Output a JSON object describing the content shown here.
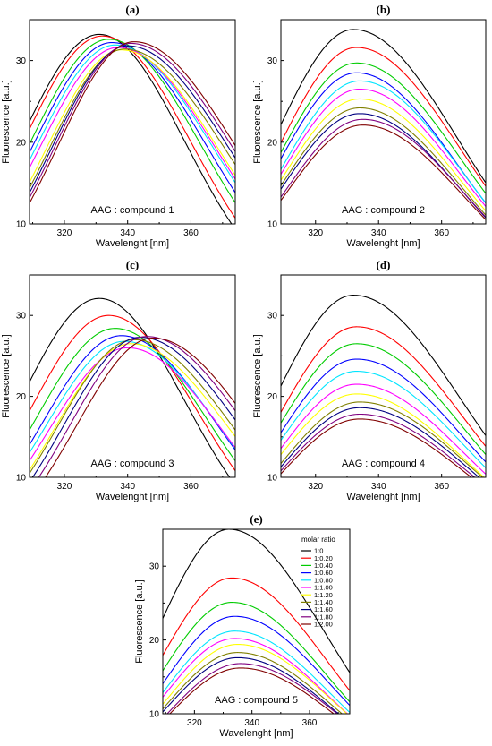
{
  "colors": [
    "#000000",
    "#ff0000",
    "#00cc00",
    "#0000ff",
    "#00e5ff",
    "#ff00ff",
    "#ffff00",
    "#808000",
    "#000080",
    "#800080",
    "#800000"
  ],
  "legend": {
    "title": "molar ratio",
    "entries": [
      "1:0",
      "1:0.20",
      "1:0.40",
      "1:0.60",
      "1:0.80",
      "1:1.00",
      "1:1.20",
      "1:1.40",
      "1:1.60",
      "1:1.80",
      "1:2.00"
    ]
  },
  "chart_data": [
    {
      "type": "line",
      "panel": "(a)",
      "annotation": "AAG : compound 1",
      "xlabel": "Wavelenght [nm]",
      "ylabel": "Fluorescence [a.u.]",
      "xlim": [
        309,
        374
      ],
      "ylim": [
        10,
        35
      ],
      "xticks": [
        320,
        340,
        360
      ],
      "yticks": [
        10,
        20,
        30
      ],
      "series_params": [
        {
          "amp": 33.2,
          "center": 331,
          "sigL": 25,
          "sigR": 27
        },
        {
          "amp": 33.0,
          "center": 332,
          "sigL": 25,
          "sigR": 28
        },
        {
          "amp": 32.6,
          "center": 334,
          "sigL": 25,
          "sigR": 29
        },
        {
          "amp": 32.2,
          "center": 335,
          "sigL": 25,
          "sigR": 30
        },
        {
          "amp": 31.9,
          "center": 336,
          "sigL": 25,
          "sigR": 31
        },
        {
          "amp": 31.6,
          "center": 337,
          "sigL": 25,
          "sigR": 31
        },
        {
          "amp": 31.3,
          "center": 338,
          "sigL": 24,
          "sigR": 31
        },
        {
          "amp": 31.4,
          "center": 339,
          "sigL": 24,
          "sigR": 32
        },
        {
          "amp": 31.8,
          "center": 340,
          "sigL": 24,
          "sigR": 32
        },
        {
          "amp": 32.1,
          "center": 341,
          "sigL": 24,
          "sigR": 32
        },
        {
          "amp": 32.3,
          "center": 342,
          "sigL": 24,
          "sigR": 32
        }
      ]
    },
    {
      "type": "line",
      "panel": "(b)",
      "annotation": "AAG : compound 2",
      "xlabel": "Wavelenght [nm]",
      "ylabel": "Fluorescence [a.u.]",
      "xlim": [
        309,
        374
      ],
      "ylim": [
        10,
        35
      ],
      "xticks": [
        320,
        340,
        360
      ],
      "yticks": [
        10,
        20,
        30
      ],
      "series_params": [
        {
          "amp": 33.8,
          "center": 332,
          "sigL": 25,
          "sigR": 33
        },
        {
          "amp": 31.6,
          "center": 333,
          "sigL": 25,
          "sigR": 33
        },
        {
          "amp": 29.7,
          "center": 333,
          "sigL": 25,
          "sigR": 33
        },
        {
          "amp": 28.5,
          "center": 333,
          "sigL": 25,
          "sigR": 32
        },
        {
          "amp": 27.5,
          "center": 334,
          "sigL": 25,
          "sigR": 32
        },
        {
          "amp": 26.5,
          "center": 334,
          "sigL": 25,
          "sigR": 32
        },
        {
          "amp": 25.3,
          "center": 334,
          "sigL": 25,
          "sigR": 32
        },
        {
          "amp": 24.2,
          "center": 334,
          "sigL": 25,
          "sigR": 32
        },
        {
          "amp": 23.5,
          "center": 334,
          "sigL": 25,
          "sigR": 32
        },
        {
          "amp": 22.8,
          "center": 335,
          "sigL": 25,
          "sigR": 32
        },
        {
          "amp": 22.1,
          "center": 335,
          "sigL": 25,
          "sigR": 32
        }
      ]
    },
    {
      "type": "line",
      "panel": "(c)",
      "annotation": "AAG  : compound 3",
      "xlabel": "Wavelenght [nm]",
      "ylabel": "Fluorescence [a.u.]",
      "xlim": [
        309,
        374
      ],
      "ylim": [
        10,
        35
      ],
      "xticks": [
        320,
        340,
        360
      ],
      "yticks": [
        10,
        20,
        30
      ],
      "series_params": [
        {
          "amp": 32.1,
          "center": 331,
          "sigL": 25,
          "sigR": 27
        },
        {
          "amp": 30.0,
          "center": 334,
          "sigL": 25,
          "sigR": 28
        },
        {
          "amp": 28.4,
          "center": 336,
          "sigL": 25,
          "sigR": 29
        },
        {
          "amp": 27.5,
          "center": 338,
          "sigL": 25,
          "sigR": 30
        },
        {
          "amp": 26.8,
          "center": 339,
          "sigL": 25,
          "sigR": 30
        },
        {
          "amp": 26.0,
          "center": 340,
          "sigL": 25,
          "sigR": 30
        },
        {
          "amp": 26.5,
          "center": 341,
          "sigL": 24,
          "sigR": 31
        },
        {
          "amp": 27.0,
          "center": 342,
          "sigL": 24,
          "sigR": 31
        },
        {
          "amp": 27.3,
          "center": 344,
          "sigL": 24,
          "sigR": 31
        },
        {
          "amp": 27.4,
          "center": 346,
          "sigL": 24,
          "sigR": 31
        },
        {
          "amp": 27.2,
          "center": 348,
          "sigL": 24,
          "sigR": 31
        }
      ]
    },
    {
      "type": "line",
      "panel": "(d)",
      "annotation": "AAG  : compound 4",
      "xlabel": "Wavelenght [nm]",
      "ylabel": "Fluorescence [a.u.]",
      "xlim": [
        309,
        374
      ],
      "ylim": [
        10,
        35
      ],
      "xticks": [
        320,
        340,
        360
      ],
      "yticks": [
        10,
        20,
        30
      ],
      "series_params": [
        {
          "amp": 32.5,
          "center": 332,
          "sigL": 25,
          "sigR": 34
        },
        {
          "amp": 28.6,
          "center": 333,
          "sigL": 25,
          "sigR": 34
        },
        {
          "amp": 26.5,
          "center": 333,
          "sigL": 25,
          "sigR": 34
        },
        {
          "amp": 24.6,
          "center": 333,
          "sigL": 25,
          "sigR": 34
        },
        {
          "amp": 23.1,
          "center": 333,
          "sigL": 25,
          "sigR": 34
        },
        {
          "amp": 21.5,
          "center": 333,
          "sigL": 25,
          "sigR": 34
        },
        {
          "amp": 20.3,
          "center": 333,
          "sigL": 25,
          "sigR": 34
        },
        {
          "amp": 19.3,
          "center": 334,
          "sigL": 25,
          "sigR": 34
        },
        {
          "amp": 18.6,
          "center": 334,
          "sigL": 25,
          "sigR": 34
        },
        {
          "amp": 17.8,
          "center": 334,
          "sigL": 25,
          "sigR": 34
        },
        {
          "amp": 17.2,
          "center": 334,
          "sigL": 25,
          "sigR": 34
        }
      ]
    },
    {
      "type": "line",
      "panel": "(e)",
      "annotation": "AAG  : compound 5",
      "xlabel": "Wavelenght [nm]",
      "ylabel": "Fluorescence [a.u.]",
      "xlim": [
        309,
        374
      ],
      "ylim": [
        10,
        35
      ],
      "xticks": [
        320,
        340,
        360
      ],
      "yticks": [
        10,
        20,
        30
      ],
      "series_params": [
        {
          "amp": 35.0,
          "center": 332,
          "sigL": 25,
          "sigR": 33
        },
        {
          "amp": 28.4,
          "center": 333,
          "sigL": 25,
          "sigR": 33
        },
        {
          "amp": 25.1,
          "center": 333,
          "sigL": 25,
          "sigR": 33
        },
        {
          "amp": 23.2,
          "center": 334,
          "sigL": 25,
          "sigR": 33
        },
        {
          "amp": 21.2,
          "center": 334,
          "sigL": 25,
          "sigR": 33
        },
        {
          "amp": 20.2,
          "center": 334,
          "sigL": 25,
          "sigR": 33
        },
        {
          "amp": 19.4,
          "center": 335,
          "sigL": 25,
          "sigR": 33
        },
        {
          "amp": 18.3,
          "center": 335,
          "sigL": 25,
          "sigR": 33
        },
        {
          "amp": 17.6,
          "center": 335,
          "sigL": 25,
          "sigR": 33
        },
        {
          "amp": 16.8,
          "center": 336,
          "sigL": 25,
          "sigR": 33
        },
        {
          "amp": 16.2,
          "center": 336,
          "sigL": 25,
          "sigR": 33
        }
      ]
    }
  ]
}
